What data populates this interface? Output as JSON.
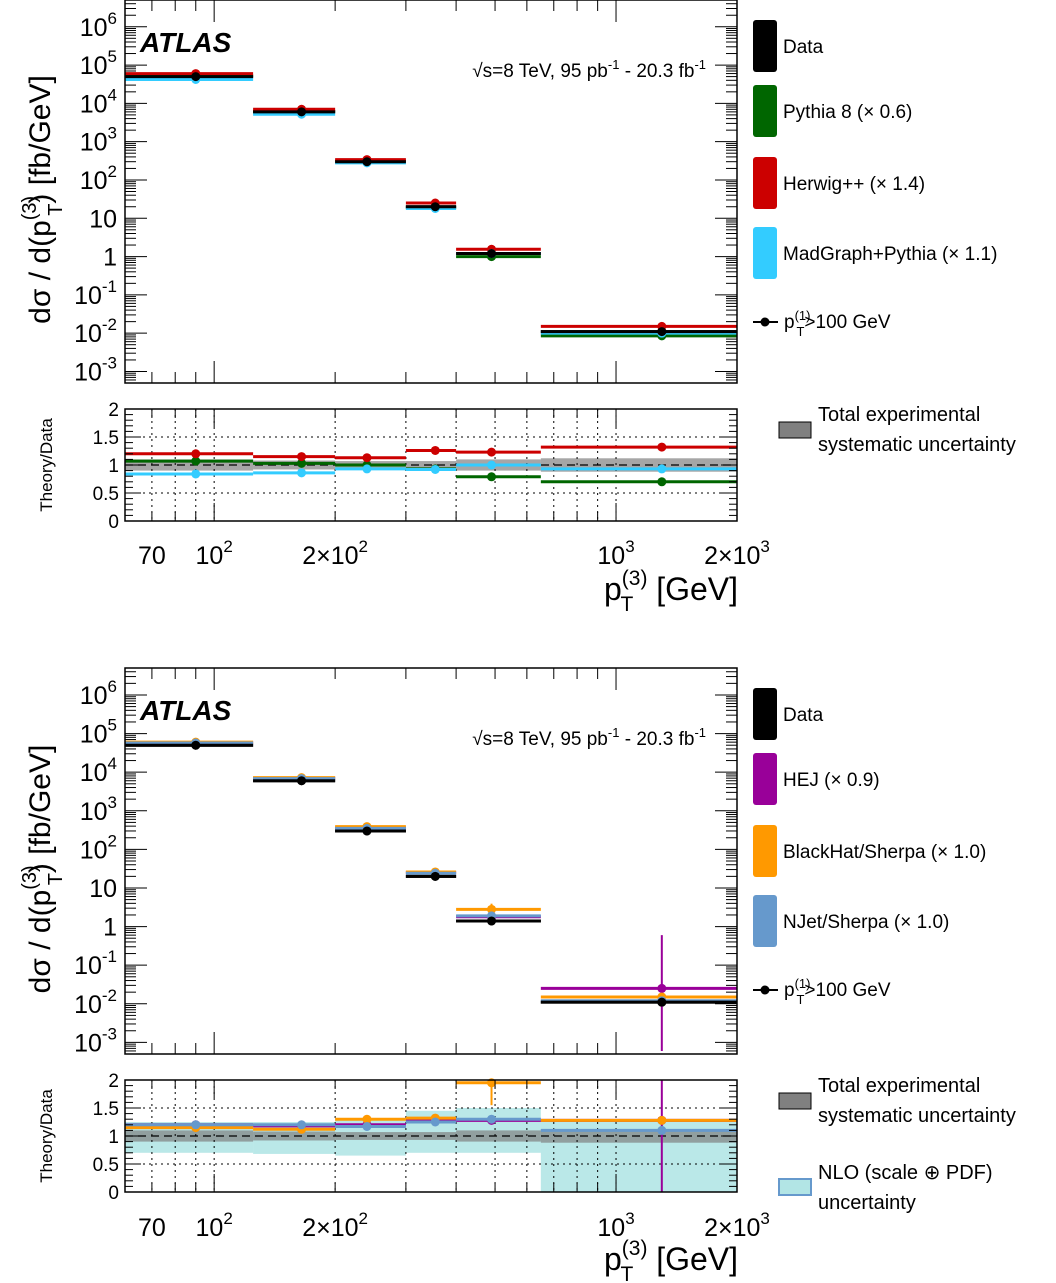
{
  "x_axis": {
    "label_prefix": "p",
    "label_sup": "(3)",
    "label_sub": "T",
    "label_unit": "[GeV]",
    "ticks": [
      {
        "value": 70,
        "text": "70"
      },
      {
        "value": 100,
        "text": "10",
        "exp": "2"
      },
      {
        "value": 200,
        "text": "2×10",
        "exp": "2"
      },
      {
        "value": 1000,
        "text": "10",
        "exp": "3"
      },
      {
        "value": 2000,
        "text": "2×10",
        "exp": "3"
      }
    ]
  },
  "y_axis": {
    "label_main": "dσ / d(p",
    "label_sup": "(3)",
    "label_sub": "T",
    "label_end": ") [fb/GeV]",
    "ticks": [
      {
        "value": 0.001,
        "text": "10",
        "exp": "-3"
      },
      {
        "value": 0.01,
        "text": "10",
        "exp": "-2"
      },
      {
        "value": 0.1,
        "text": "10",
        "exp": "-1"
      },
      {
        "value": 1,
        "text": "1"
      },
      {
        "value": 10,
        "text": "10"
      },
      {
        "value": 100,
        "text": "10",
        "exp": "2"
      },
      {
        "value": 1000,
        "text": "10",
        "exp": "3"
      },
      {
        "value": 10000,
        "text": "10",
        "exp": "4"
      },
      {
        "value": 100000,
        "text": "10",
        "exp": "5"
      },
      {
        "value": 1000000,
        "text": "10",
        "exp": "6"
      }
    ]
  },
  "ratio_axis": {
    "label": "Theory/Data",
    "ticks": [
      {
        "value": 0,
        "text": "0"
      },
      {
        "value": 0.5,
        "text": "0.5"
      },
      {
        "value": 1,
        "text": "1"
      },
      {
        "value": 1.5,
        "text": "1.5"
      },
      {
        "value": 2,
        "text": "2"
      }
    ]
  },
  "annotations": {
    "experiment": "ATLAS",
    "energy": "√s=8 TeV, 95 pb",
    "energy_exp": "-1",
    "energy_mid": " - 20.3 fb",
    "energy_exp2": "-1",
    "selection_prefix": "p",
    "selection_sup": "(1)",
    "selection_sub": "T",
    "selection_suffix": ">100 GeV"
  },
  "chart_data": [
    {
      "type": "line",
      "panel": "top",
      "x_range": [
        60,
        2000
      ],
      "y_range": [
        0.0005,
        5000000
      ],
      "y_scale": "log",
      "ratio_range": [
        0,
        2
      ],
      "bins": [
        [
          60,
          125
        ],
        [
          125,
          200
        ],
        [
          200,
          300
        ],
        [
          300,
          400
        ],
        [
          400,
          650
        ],
        [
          650,
          2000
        ]
      ],
      "x_points": [
        90,
        165,
        240,
        355,
        490,
        1300
      ],
      "legend_placement": "right",
      "series": [
        {
          "name": "Data",
          "color": "#000000",
          "values": [
            50000,
            6000,
            300,
            20,
            1.2,
            0.011
          ]
        },
        {
          "name": "Pythia 8 (× 0.6)",
          "color": "#006600",
          "values": [
            53000,
            6200,
            310,
            19,
            1.0,
            0.0085
          ],
          "ratio": [
            1.07,
            1.03,
            1.0,
            0.93,
            0.79,
            0.7
          ]
        },
        {
          "name": "Herwig++ (× 1.4)",
          "color": "#cc0000",
          "values": [
            60000,
            7000,
            340,
            25,
            1.55,
            0.015
          ],
          "ratio": [
            1.2,
            1.15,
            1.13,
            1.26,
            1.23,
            1.32
          ]
        },
        {
          "name": "MadGraph+Pythia (× 1.1)",
          "color": "#33ccff",
          "values": [
            42000,
            5200,
            280,
            18,
            1.2,
            0.01
          ],
          "ratio": [
            0.84,
            0.86,
            0.93,
            0.92,
            1.0,
            0.93
          ]
        }
      ],
      "uncertainty": [
        {
          "name": "Total experimental systematic uncertainty",
          "color": "#808080",
          "band": [
            [
              0.9,
              1.1
            ],
            [
              0.92,
              1.08
            ],
            [
              0.93,
              1.07
            ],
            [
              0.93,
              1.07
            ],
            [
              0.9,
              1.1
            ],
            [
              0.88,
              1.12
            ]
          ]
        }
      ]
    },
    {
      "type": "line",
      "panel": "bottom",
      "x_range": [
        60,
        2000
      ],
      "y_range": [
        0.0005,
        5000000
      ],
      "y_scale": "log",
      "ratio_range": [
        0,
        2
      ],
      "bins": [
        [
          60,
          125
        ],
        [
          125,
          200
        ],
        [
          200,
          300
        ],
        [
          300,
          400
        ],
        [
          400,
          650
        ],
        [
          650,
          2000
        ]
      ],
      "x_points": [
        90,
        165,
        240,
        355,
        490,
        1300
      ],
      "legend_placement": "right",
      "series": [
        {
          "name": "Data",
          "color": "#000000",
          "values": [
            50000,
            6000,
            300,
            20,
            1.4,
            0.011
          ]
        },
        {
          "name": "HEJ (× 0.9)",
          "color": "#990099",
          "values": [
            58000,
            7000,
            360,
            25,
            1.8,
            0.025
          ],
          "ratio": [
            1.2,
            1.18,
            1.2,
            1.27,
            1.28,
            1.28
          ]
        },
        {
          "name": "BlackHat/Sherpa (× 1.0)",
          "color": "#ff9900",
          "values": [
            60000,
            7200,
            390,
            26,
            2.8,
            0.015
          ],
          "ratio": [
            1.15,
            1.12,
            1.3,
            1.32,
            1.95,
            1.28
          ]
        },
        {
          "name": "NJet/Sherpa (× 1.0)",
          "color": "#6699cc",
          "values": [
            57000,
            6800,
            350,
            24,
            1.9,
            0.012
          ],
          "ratio": [
            1.2,
            1.2,
            1.17,
            1.25,
            1.3,
            1.1
          ]
        }
      ],
      "uncertainty": [
        {
          "name": "Total experimental systematic uncertainty",
          "color": "#808080",
          "band": [
            [
              0.9,
              1.1
            ],
            [
              0.92,
              1.08
            ],
            [
              0.93,
              1.07
            ],
            [
              0.93,
              1.07
            ],
            [
              0.9,
              1.1
            ],
            [
              0.88,
              1.12
            ]
          ]
        },
        {
          "name": "NLO (scale ⊕ PDF) uncertainty",
          "color": "#66cccc",
          "band": [
            [
              0.7,
              1.25
            ],
            [
              0.68,
              1.25
            ],
            [
              0.65,
              1.3
            ],
            [
              0.7,
              1.45
            ],
            [
              0.7,
              1.5
            ],
            [
              0.0,
              1.3
            ]
          ]
        }
      ]
    }
  ],
  "legends": [
    {
      "text": [
        "Total experimental",
        "systematic uncertainty"
      ]
    },
    {
      "text": [
        "Total experimental",
        "systematic uncertainty"
      ],
      "text2": [
        "NLO (scale ⊕ PDF)",
        "uncertainty"
      ]
    }
  ]
}
